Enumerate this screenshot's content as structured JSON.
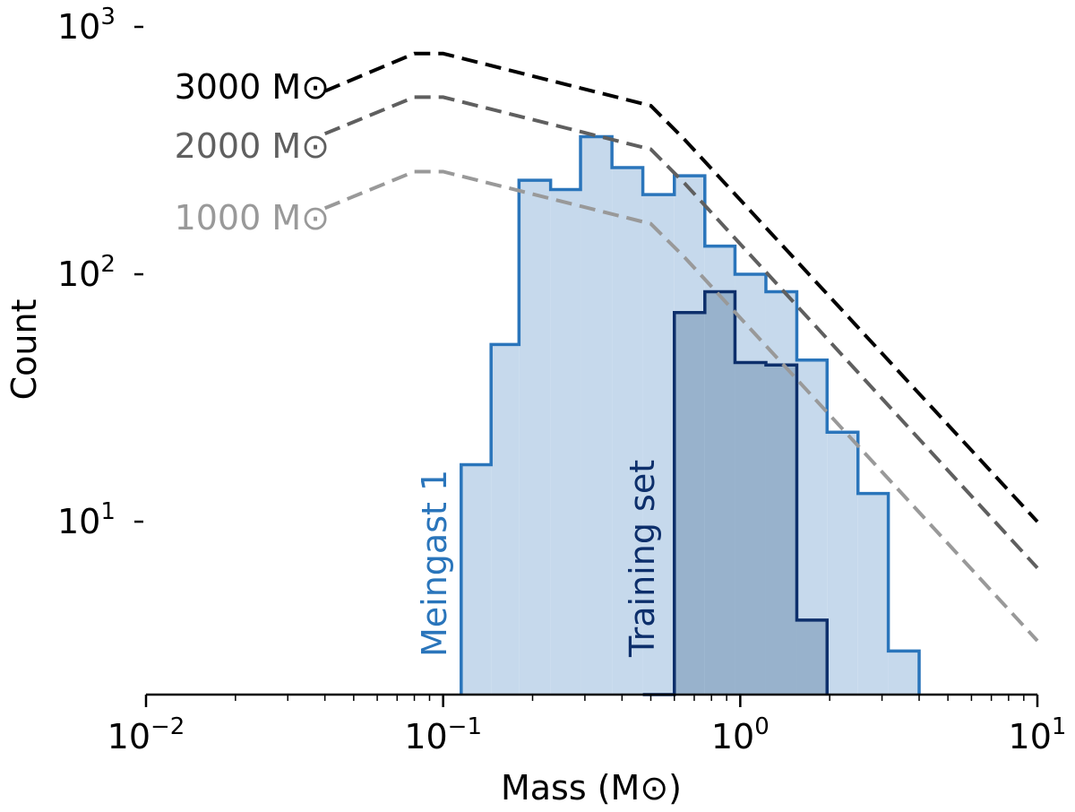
{
  "chart_data": {
    "type": "step-histogram",
    "xscale": "log",
    "yscale": "log",
    "xlim": [
      0.01,
      10
    ],
    "ylim": [
      2,
      1000
    ],
    "xlabel": "Mass (M⊙)",
    "ylabel": "Count",
    "x_ticks": [
      {
        "value": 0.01,
        "base": "10",
        "exp": "−2"
      },
      {
        "value": 0.1,
        "base": "10",
        "exp": "−1"
      },
      {
        "value": 1,
        "base": "10",
        "exp": "0"
      },
      {
        "value": 10,
        "base": "10",
        "exp": "1"
      }
    ],
    "y_ticks": [
      {
        "value": 10,
        "base": "10",
        "exp": "1"
      },
      {
        "value": 100,
        "base": "10",
        "exp": "2"
      },
      {
        "value": 1000,
        "base": "10",
        "exp": "3"
      }
    ],
    "histograms": [
      {
        "name": "Meingast 1",
        "label": "Meingast 1",
        "edges": [
          0.115,
          0.145,
          0.18,
          0.23,
          0.29,
          0.37,
          0.47,
          0.6,
          0.76,
          0.96,
          1.22,
          1.55,
          1.96,
          2.49,
          3.15,
          4.0
        ],
        "counts": [
          17,
          52,
          240,
          220,
          360,
          270,
          210,
          250,
          130,
          100,
          85,
          45,
          23,
          13,
          3
        ],
        "stroke": "#2a75bb",
        "fill": "#c6d9ec"
      },
      {
        "name": "Training set",
        "label": "Training set",
        "edges": [
          0.47,
          0.6,
          0.76,
          0.96,
          1.22,
          1.55,
          1.96
        ],
        "counts": [
          2,
          70,
          85,
          44,
          43,
          4
        ],
        "stroke": "#0d2f6b",
        "fill": "#98b2cc"
      }
    ],
    "series": [
      {
        "name": "3000 M⊙",
        "label": "3000 M⊙",
        "x": [
          0.04,
          0.08,
          0.1,
          0.5,
          0.65,
          10
        ],
        "y": [
          550,
          780,
          780,
          480,
          350,
          10
        ],
        "color": "#000000",
        "style": "dashed"
      },
      {
        "name": "2000 M⊙",
        "label": "2000 M⊙",
        "x": [
          0.04,
          0.08,
          0.1,
          0.5,
          0.65,
          10
        ],
        "y": [
          370,
          520,
          520,
          320,
          233,
          6.5
        ],
        "color": "#5f5f5f",
        "style": "dashed"
      },
      {
        "name": "1000 M⊙",
        "label": "1000 M⊙",
        "x": [
          0.04,
          0.08,
          0.1,
          0.5,
          0.65,
          10
        ],
        "y": [
          185,
          260,
          260,
          160,
          117,
          3.3
        ],
        "color": "#999999",
        "style": "dashed"
      }
    ]
  }
}
